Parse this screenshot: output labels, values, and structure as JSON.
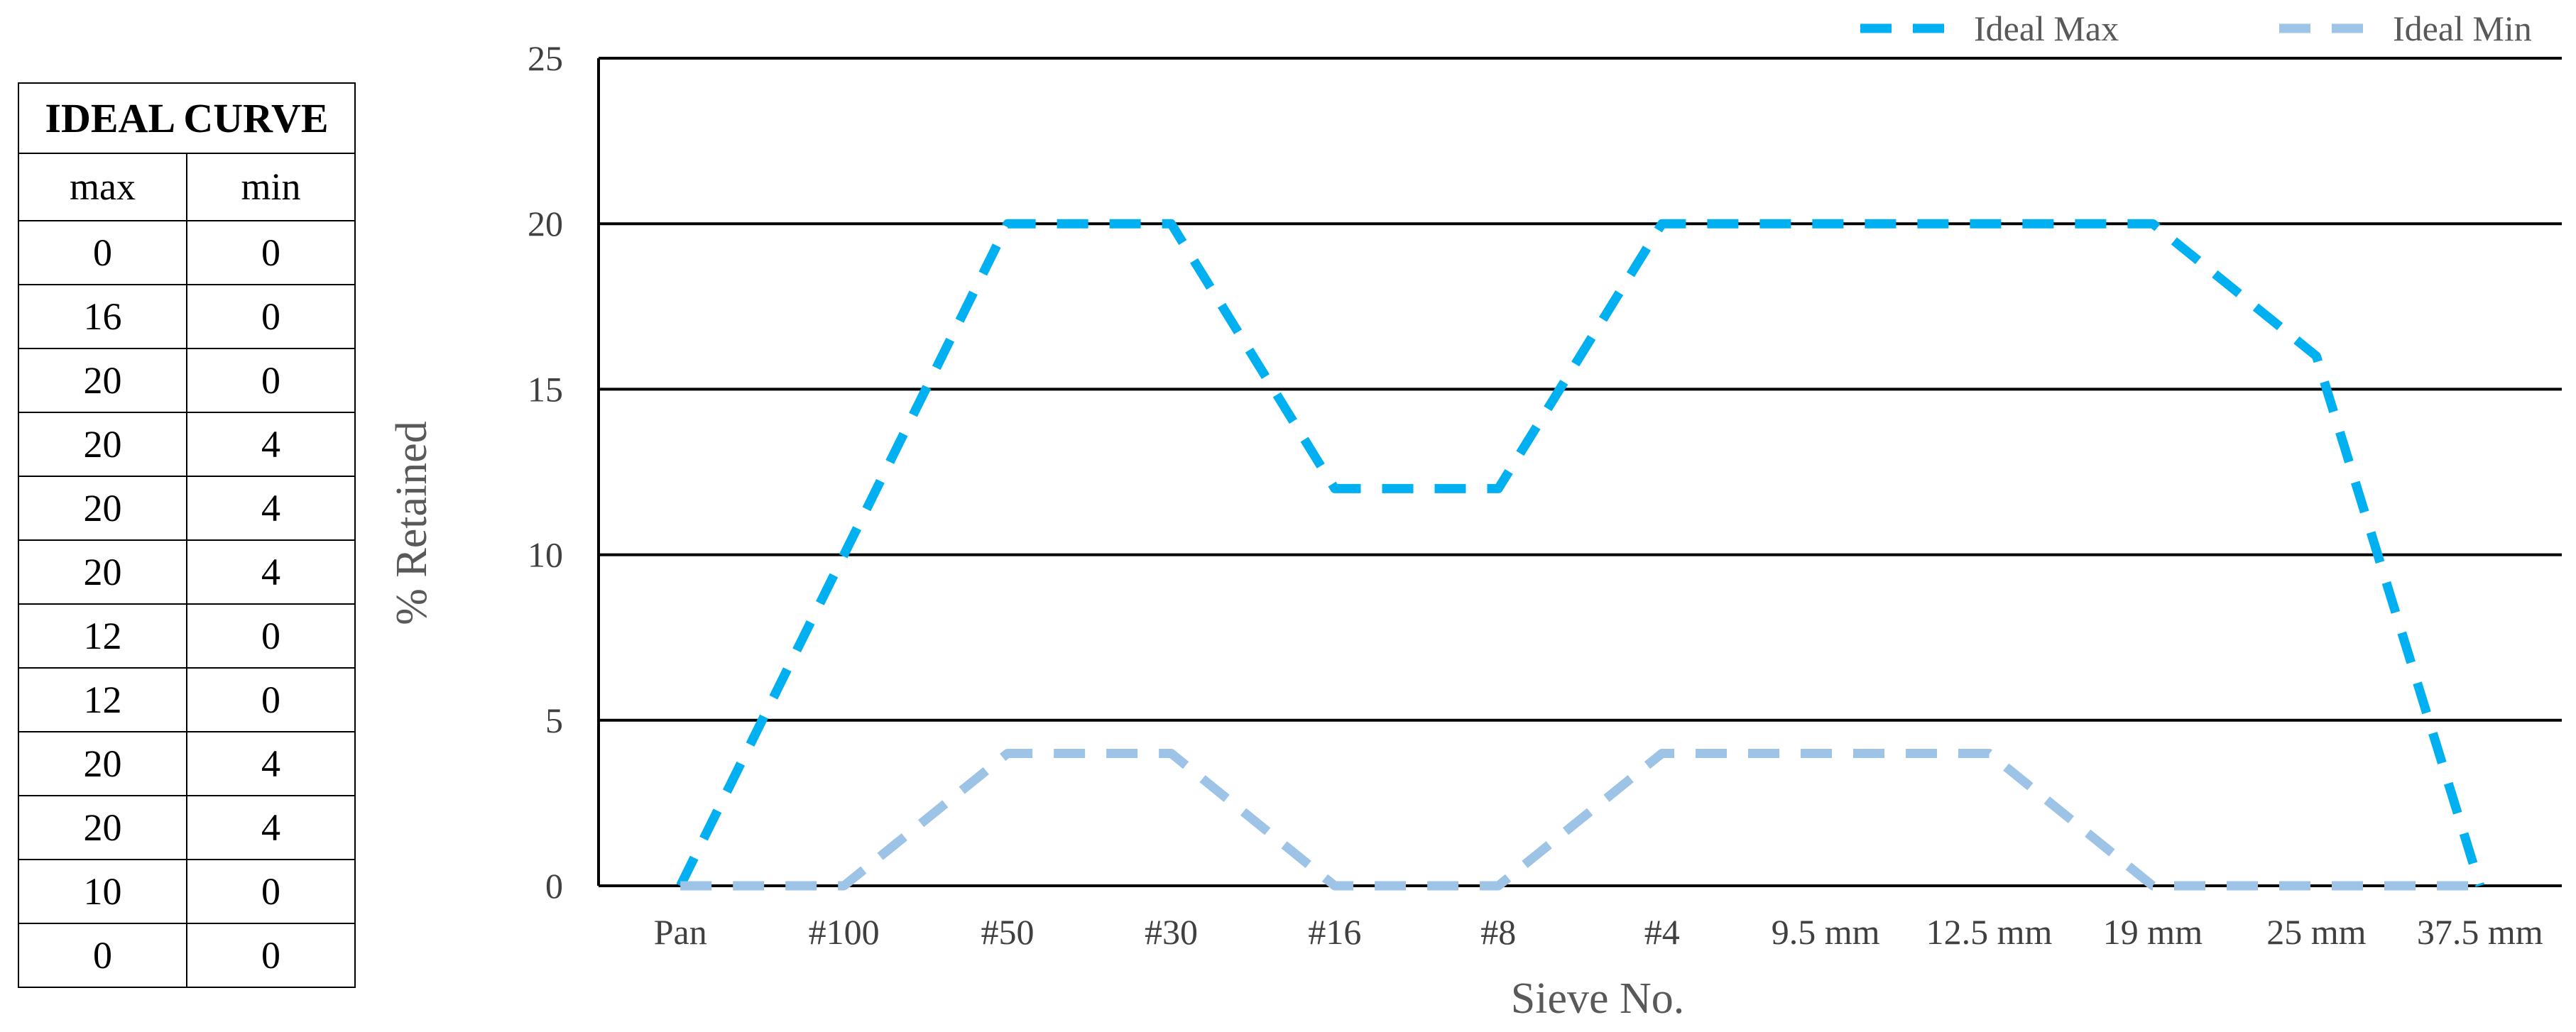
{
  "table": {
    "title": "IDEAL CURVE",
    "headers": [
      "max",
      "min"
    ],
    "rows": [
      [
        "0",
        "0"
      ],
      [
        "16",
        "0"
      ],
      [
        "20",
        "0"
      ],
      [
        "20",
        "4"
      ],
      [
        "20",
        "4"
      ],
      [
        "20",
        "4"
      ],
      [
        "12",
        "0"
      ],
      [
        "12",
        "0"
      ],
      [
        "20",
        "4"
      ],
      [
        "20",
        "4"
      ],
      [
        "10",
        "0"
      ],
      [
        "0",
        "0"
      ]
    ]
  },
  "chart_data": {
    "type": "line",
    "categories": [
      "Pan",
      "#100",
      "#50",
      "#30",
      "#16",
      "#8",
      "#4",
      "9.5 mm",
      "12.5 mm",
      "19 mm",
      "25 mm",
      "37.5 mm"
    ],
    "series": [
      {
        "name": "Ideal Max",
        "values": [
          0,
          10,
          20,
          20,
          12,
          12,
          20,
          20,
          20,
          20,
          16,
          0
        ],
        "color": "#00B0F0",
        "style": "dashed"
      },
      {
        "name": "Ideal Min",
        "values": [
          0,
          0,
          4,
          4,
          0,
          0,
          4,
          4,
          4,
          0,
          0,
          0
        ],
        "color": "#9DC3E6",
        "style": "dashed"
      }
    ],
    "xlabel": "Sieve No.",
    "ylabel": "% Retained",
    "ylim": [
      0,
      25
    ],
    "yticks": [
      0,
      5,
      10,
      15,
      20,
      25
    ],
    "grid": "horizontal",
    "legend_position": "top-right"
  }
}
